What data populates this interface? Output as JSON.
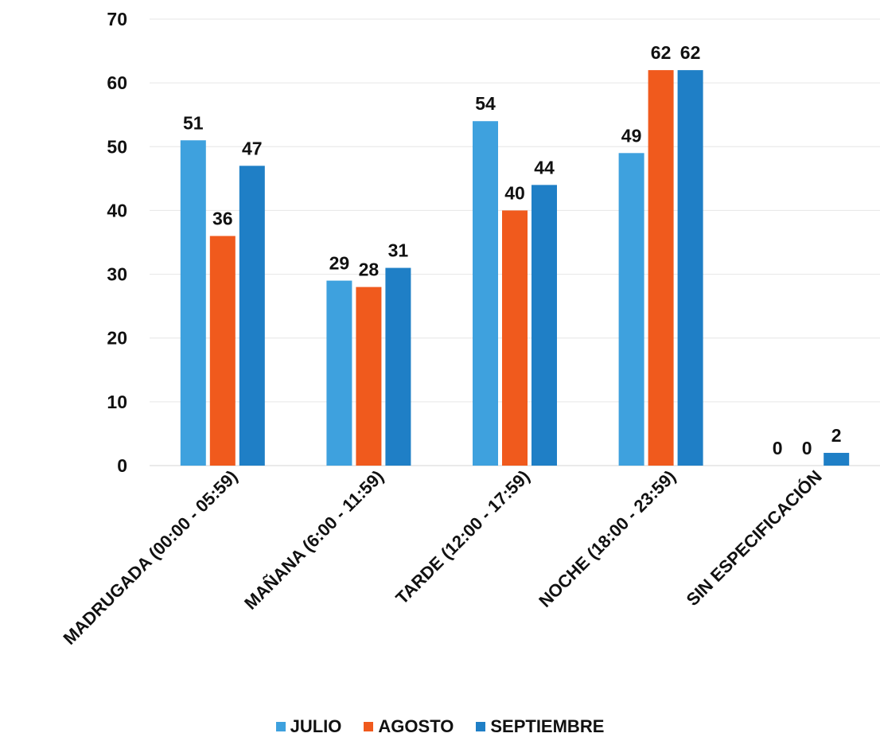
{
  "chart_data": {
    "type": "bar",
    "categories": [
      "MADRUGADA (00:00 - 05:59)",
      "MAÑANA (6:00 - 11:59)",
      "TARDE (12:00 - 17:59)",
      "NOCHE (18:00 - 23:59)",
      "SIN ESPECIFICACIÓN"
    ],
    "series": [
      {
        "name": "JULIO",
        "values": [
          51,
          29,
          54,
          49,
          0
        ],
        "color": "#3ea1de"
      },
      {
        "name": "AGOSTO",
        "values": [
          36,
          28,
          40,
          62,
          0
        ],
        "color": "#f05a1d"
      },
      {
        "name": "SEPTIEMBRE",
        "values": [
          47,
          31,
          44,
          62,
          2
        ],
        "color": "#1f7fc6"
      }
    ],
    "ylim": [
      0,
      70
    ],
    "yticks": [
      0,
      10,
      20,
      30,
      40,
      50,
      60,
      70
    ],
    "grid": true,
    "legend": "bottom",
    "data_labels": true
  }
}
